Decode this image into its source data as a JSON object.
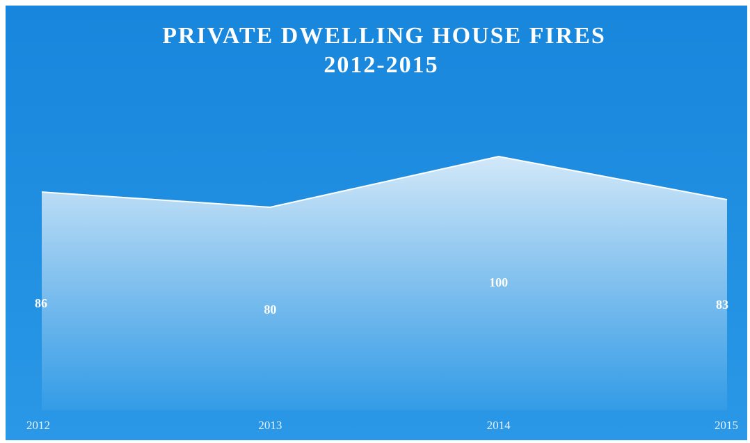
{
  "chart_data": {
    "type": "area",
    "title": "PRIVATE DWELLING HOUSE FIRES",
    "subtitle": "2012-2015",
    "categories": [
      "2012",
      "2013",
      "2014",
      "2015"
    ],
    "values": [
      86,
      80,
      100,
      83
    ],
    "color": "#ffffff",
    "ylim": [
      0,
      120
    ]
  }
}
